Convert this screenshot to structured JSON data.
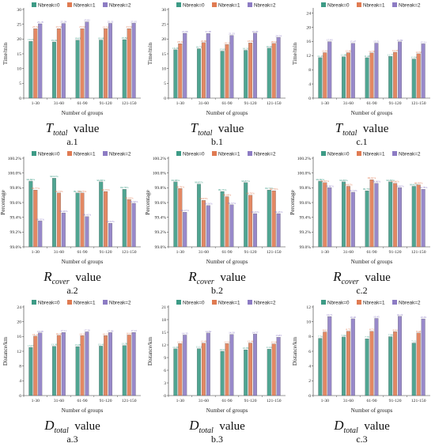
{
  "colors": {
    "nb0": "#3d9b86",
    "nb1": "#e07b52",
    "nb2": "#8d7cc4"
  },
  "panels": [
    {
      "id": "a.1",
      "metric": "T",
      "sub": "total",
      "suffix": "value"
    },
    {
      "id": "b.1",
      "metric": "T",
      "sub": "total",
      "suffix": "value"
    },
    {
      "id": "c.1",
      "metric": "T",
      "sub": "total",
      "suffix": "value"
    },
    {
      "id": "a.2",
      "metric": "R",
      "sub": "cover",
      "suffix": "value"
    },
    {
      "id": "b.2",
      "metric": "R",
      "sub": "cover",
      "suffix": "value"
    },
    {
      "id": "c.2",
      "metric": "R",
      "sub": "cover",
      "suffix": "value"
    },
    {
      "id": "a.3",
      "metric": "D",
      "sub": "total",
      "suffix": "value"
    },
    {
      "id": "b.3",
      "metric": "D",
      "sub": "total",
      "suffix": "value"
    },
    {
      "id": "c.3",
      "metric": "D",
      "sub": "total",
      "suffix": "value"
    }
  ],
  "chart_data": [
    {
      "panel": "a.1",
      "type": "bar",
      "xlabel": "Number of groups",
      "ylabel": "Time/min",
      "ylim": [
        0,
        30
      ],
      "yticks": [
        0,
        5,
        10,
        15,
        20,
        25,
        30
      ],
      "unit": "",
      "categories": [
        "1-30",
        "31-60",
        "61-90",
        "91-120",
        "121-150"
      ],
      "series": [
        {
          "name": "Nbreak=0",
          "values": [
            19.25,
            19.02,
            19.63,
            19.68,
            19.82
          ]
        },
        {
          "name": "Nbreak=1",
          "values": [
            23.52,
            23.52,
            23.52,
            23.5,
            23.52
          ]
        },
        {
          "name": "Nbreak=2",
          "values": [
            25.18,
            25.29,
            25.82,
            25.32,
            25.35
          ]
        }
      ]
    },
    {
      "panel": "b.1",
      "type": "bar",
      "xlabel": "Number of groups",
      "ylabel": "Time/min",
      "ylim": [
        0,
        30
      ],
      "yticks": [
        0,
        5,
        10,
        15,
        20,
        25,
        30
      ],
      "unit": "",
      "categories": [
        "1-30",
        "31-60",
        "61-90",
        "91-120",
        "121-150"
      ],
      "series": [
        {
          "name": "Nbreak=0",
          "values": [
            16.38,
            16.73,
            15.93,
            16.2,
            16.92
          ]
        },
        {
          "name": "Nbreak=1",
          "values": [
            18.44,
            18.8,
            18.13,
            18.69,
            18.52
          ]
        },
        {
          "name": "Nbreak=2",
          "values": [
            21.96,
            21.9,
            21.23,
            22.0,
            20.54
          ]
        }
      ]
    },
    {
      "panel": "c.1",
      "type": "bar",
      "xlabel": "Number of groups",
      "ylabel": "Time/min",
      "ylim": [
        0,
        25
      ],
      "yticks": [
        0,
        4,
        8,
        12,
        16,
        20,
        24
      ],
      "unit": "",
      "categories": [
        "1-30",
        "31-60",
        "61-90",
        "91-120",
        "121-150"
      ],
      "series": [
        {
          "name": "Nbreak=0",
          "values": [
            11.43,
            11.68,
            11.4,
            11.77,
            11.04
          ]
        },
        {
          "name": "Nbreak=1",
          "values": [
            12.83,
            12.82,
            12.76,
            12.95,
            12.52
          ]
        },
        {
          "name": "Nbreak=2",
          "values": [
            15.93,
            15.47,
            15.51,
            15.89,
            15.31
          ]
        }
      ]
    },
    {
      "panel": "a.2",
      "type": "bar",
      "xlabel": "Number of groups",
      "ylabel": "Percentage",
      "ylim": [
        99.0,
        100.2
      ],
      "yticks": [
        99.0,
        99.2,
        99.4,
        99.6,
        99.8,
        100.0,
        100.2
      ],
      "unit": "%",
      "categories": [
        "1-30",
        "31-60",
        "61-90",
        "91-120",
        "121-150"
      ],
      "series": [
        {
          "name": "Nbreak=0",
          "values": [
            99.89,
            99.93,
            99.73,
            99.88,
            99.78
          ]
        },
        {
          "name": "Nbreak=1",
          "values": [
            99.77,
            99.73,
            99.73,
            99.75,
            99.64
          ]
        },
        {
          "name": "Nbreak=2",
          "values": [
            99.35,
            99.46,
            99.41,
            99.32,
            99.59
          ]
        }
      ]
    },
    {
      "panel": "b.2",
      "type": "bar",
      "xlabel": "Number of groups",
      "ylabel": "Percentage",
      "ylim": [
        99.0,
        100.2
      ],
      "yticks": [
        99.0,
        99.2,
        99.4,
        99.6,
        99.8,
        100.0,
        100.2
      ],
      "unit": "%",
      "categories": [
        "1-30",
        "31-60",
        "61-90",
        "91-120",
        "121-150"
      ],
      "series": [
        {
          "name": "Nbreak=0",
          "values": [
            99.88,
            99.85,
            99.75,
            99.87,
            99.77
          ]
        },
        {
          "name": "Nbreak=1",
          "values": [
            99.79,
            99.63,
            99.68,
            99.7,
            99.76
          ]
        },
        {
          "name": "Nbreak=2",
          "values": [
            99.47,
            99.56,
            99.57,
            99.45,
            99.45
          ]
        }
      ]
    },
    {
      "panel": "c.2",
      "type": "bar",
      "xlabel": "Number of groups",
      "ylabel": "Percentage",
      "ylim": [
        99.0,
        100.2
      ],
      "yticks": [
        99.0,
        99.2,
        99.4,
        99.6,
        99.8,
        100.0,
        100.2
      ],
      "unit": "%",
      "categories": [
        "1-30",
        "31-60",
        "61-90",
        "91-120",
        "121-150"
      ],
      "series": [
        {
          "name": "Nbreak=0",
          "values": [
            99.89,
            99.88,
            99.76,
            99.88,
            99.82
          ]
        },
        {
          "name": "Nbreak=1",
          "values": [
            99.87,
            99.82,
            99.91,
            99.86,
            99.84
          ]
        },
        {
          "name": "Nbreak=2",
          "values": [
            99.8,
            99.74,
            99.86,
            99.8,
            99.78
          ]
        }
      ]
    },
    {
      "panel": "a.3",
      "type": "bar",
      "xlabel": "Number of groups",
      "ylabel": "Distance/km",
      "ylim": [
        0,
        24
      ],
      "yticks": [
        0,
        4,
        8,
        12,
        16,
        20,
        24
      ],
      "unit": "",
      "categories": [
        "1-30",
        "31-60",
        "61-90",
        "91-120",
        "121-150"
      ],
      "series": [
        {
          "name": "Nbreak=0",
          "values": [
            13.07,
            13.36,
            13.28,
            13.41,
            13.58
          ]
        },
        {
          "name": "Nbreak=1",
          "values": [
            16.12,
            16.32,
            16.23,
            16.23,
            16.41
          ]
        },
        {
          "name": "Nbreak=2",
          "values": [
            16.98,
            17.11,
            17.26,
            17.06,
            17.12
          ]
        }
      ]
    },
    {
      "panel": "b.3",
      "type": "bar",
      "xlabel": "Number of groups",
      "ylabel": "Distance/km",
      "ylim": [
        0,
        21
      ],
      "yticks": [
        0,
        3,
        6,
        9,
        12,
        15,
        18,
        21
      ],
      "unit": "",
      "categories": [
        "1-30",
        "31-60",
        "61-90",
        "91-120",
        "121-150"
      ],
      "series": [
        {
          "name": "Nbreak=0",
          "values": [
            11.09,
            11.12,
            10.51,
            10.86,
            11.02
          ]
        },
        {
          "name": "Nbreak=1",
          "values": [
            12.31,
            12.43,
            12.31,
            12.46,
            12.24
          ]
        },
        {
          "name": "Nbreak=2",
          "values": [
            14.35,
            14.84,
            14.5,
            14.57,
            13.83
          ]
        }
      ]
    },
    {
      "panel": "c.3",
      "type": "bar",
      "xlabel": "Number of groups",
      "ylabel": "Distance/km",
      "ylim": [
        0,
        12
      ],
      "yticks": [
        0,
        2,
        4,
        6,
        8,
        10,
        12
      ],
      "unit": "",
      "categories": [
        "1-30",
        "31-60",
        "61-90",
        "91-120",
        "121-150"
      ],
      "series": [
        {
          "name": "Nbreak=0",
          "values": [
            7.76,
            7.94,
            7.7,
            7.98,
            7.12
          ]
        },
        {
          "name": "Nbreak=1",
          "values": [
            8.62,
            8.72,
            8.71,
            8.64,
            8.48
          ]
        },
        {
          "name": "Nbreak=2",
          "values": [
            10.71,
            10.4,
            10.45,
            10.74,
            10.39
          ]
        }
      ]
    }
  ]
}
